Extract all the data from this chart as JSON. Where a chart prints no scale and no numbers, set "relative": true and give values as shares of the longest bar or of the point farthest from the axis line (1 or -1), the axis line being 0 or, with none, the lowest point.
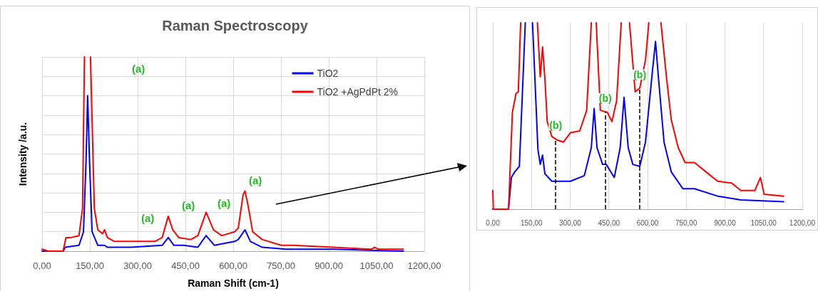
{
  "chart_data": [
    {
      "type": "line",
      "title": "Raman Spectroscopy",
      "xlabel": "Raman Shift (cm-1)",
      "ylabel": "Intensity /a.u.",
      "relative": true,
      "marker": "none",
      "grid": true,
      "legend": "top right",
      "xlim": [
        0,
        1200
      ],
      "xticks": [
        {
          "value": 0,
          "label": "0,00"
        },
        {
          "value": 150,
          "label": "150,00"
        },
        {
          "value": 300,
          "label": "300,00"
        },
        {
          "value": 450,
          "label": "450,00"
        },
        {
          "value": 600,
          "label": "600,00"
        },
        {
          "value": 750,
          "label": "750,00"
        },
        {
          "value": 900,
          "label": "900,00"
        },
        {
          "value": 1050,
          "label": "1050,00"
        },
        {
          "value": 1200,
          "label": "1200,00"
        }
      ],
      "series": [
        {
          "name": "TiO2",
          "color": "#0000ff",
          "x": [
            0,
            66,
            73,
            116,
            130,
            138,
            143,
            149,
            157,
            175,
            196,
            205,
            280,
            377,
            396,
            414,
            444,
            489,
            515,
            541,
            605,
            616,
            637,
            654,
            691,
            766,
            914,
            1134
          ],
          "values": [
            0,
            0,
            0.02,
            0.03,
            0.1,
            0.46,
            0.8,
            0.46,
            0.1,
            0.03,
            0.03,
            0.02,
            0.02,
            0.03,
            0.07,
            0.03,
            0.03,
            0.02,
            0.08,
            0.03,
            0.05,
            0.06,
            0.11,
            0.05,
            0.02,
            0.01,
            0.01,
            0
          ]
        },
        {
          "name": "TiO2 +AgPdPt 2%",
          "color": "#ff0000",
          "x": [
            0,
            20,
            66,
            75,
            90,
            116,
            127,
            133,
            143,
            152,
            164,
            175,
            190,
            196,
            205,
            227,
            280,
            354,
            377,
            396,
            410,
            429,
            467,
            489,
            515,
            538,
            564,
            605,
            616,
            631,
            637,
            646,
            661,
            691,
            751,
            788,
            914,
            1033,
            1044,
            1056,
            1134
          ],
          "values": [
            0.01,
            0,
            0,
            0.07,
            0.07,
            0.08,
            0.22,
            1,
            null,
            1,
            0.22,
            0.11,
            0.09,
            0.11,
            0.07,
            0.05,
            0.05,
            0.05,
            0.07,
            0.18,
            0.11,
            0.07,
            0.06,
            0.08,
            0.2,
            0.11,
            0.08,
            0.1,
            0.12,
            0.29,
            0.31,
            0.24,
            0.1,
            0.06,
            0.03,
            0.03,
            0.02,
            0.01,
            0.02,
            0.01,
            0.01
          ]
        }
      ],
      "annotations": [
        "(a)",
        "(a)",
        "(a)",
        "(a)",
        "(a)"
      ]
    },
    {
      "type": "line",
      "relative": true,
      "marker": "none",
      "grid": "x",
      "xlim": [
        0,
        1200
      ],
      "xticks": [
        {
          "value": 0,
          "label": "0,00"
        },
        {
          "value": 150,
          "label": "150,00"
        },
        {
          "value": 300,
          "label": "300,00"
        },
        {
          "value": 450,
          "label": "450,00"
        },
        {
          "value": 600,
          "label": "600,00"
        },
        {
          "value": 750,
          "label": "750,00"
        },
        {
          "value": 900,
          "label": "900,00"
        },
        {
          "value": 1050,
          "label": "1050,00"
        },
        {
          "value": 1200,
          "label": "1200,00"
        }
      ],
      "series": [
        {
          "color": "#0000ff",
          "x": [
            0,
            61,
            72,
            85,
            103,
            126,
            140,
            154,
            175,
            184,
            193,
            202,
            229,
            301,
            355,
            382,
            393,
            404,
            426,
            440,
            471,
            494,
            509,
            525,
            543,
            570,
            592,
            619,
            631,
            642,
            664,
            692,
            737,
            782,
            872,
            962,
            1128
          ],
          "values": [
            0,
            0,
            0.17,
            0.2,
            0.23,
            1,
            null,
            1,
            0.32,
            0.24,
            0.29,
            0.19,
            0.15,
            0.15,
            0.18,
            0.33,
            0.54,
            0.33,
            0.24,
            0.24,
            0.17,
            0.33,
            0.6,
            0.33,
            0.24,
            0.23,
            0.36,
            0.74,
            0.9,
            0.71,
            0.36,
            0.2,
            0.11,
            0.11,
            0.07,
            0.05,
            0.04
          ]
        },
        {
          "color": "#ff0000",
          "x": [
            0,
            2,
            61,
            76,
            90,
            99,
            108,
            140,
            173,
            184,
            193,
            202,
            211,
            229,
            251,
            274,
            301,
            337,
            364,
            382,
            392,
            401,
            417,
            444,
            462,
            480,
            498,
            514,
            530,
            552,
            570,
            592,
            605,
            628,
            652,
            674,
            692,
            719,
            746,
            782,
            827,
            872,
            926,
            962,
            1016,
            1038,
            1052,
            1128
          ],
          "values": [
            0.1,
            0,
            0,
            0.52,
            0.62,
            0.63,
            1,
            null,
            1,
            0.71,
            0.87,
            0.7,
            0.47,
            0.39,
            0.37,
            0.36,
            0.41,
            0.42,
            0.53,
            1,
            null,
            1,
            0.53,
            0.52,
            0.47,
            0.58,
            1,
            null,
            1,
            0.63,
            0.65,
            0.8,
            1,
            null,
            1,
            0.7,
            0.48,
            0.33,
            0.25,
            0.25,
            0.2,
            0.15,
            0.14,
            0.1,
            0.1,
            0.17,
            0.08,
            0.07
          ]
        }
      ],
      "ref_lines": [
        {
          "axis": "x",
          "value": 244,
          "label": "(b)",
          "line_style": "dashed",
          "color": "#000000"
        },
        {
          "axis": "x",
          "value": 436,
          "label": "(b)",
          "line_style": "dashed",
          "color": "#000000"
        },
        {
          "axis": "x",
          "value": 570,
          "label": "(b)",
          "line_style": "dashed",
          "color": "#000000"
        }
      ]
    }
  ]
}
